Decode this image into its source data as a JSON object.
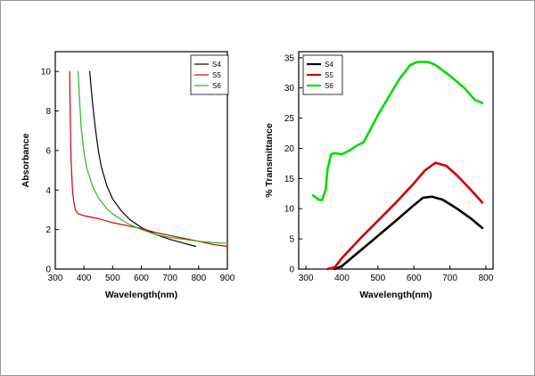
{
  "chart_data": [
    {
      "type": "line",
      "title": "",
      "xlabel": "Wavelength(nm)",
      "ylabel": "Absorbance",
      "xlim": [
        300,
        900
      ],
      "ylim": [
        0,
        11
      ],
      "xticks": [
        300,
        400,
        500,
        600,
        700,
        800,
        900
      ],
      "yticks": [
        0,
        2,
        4,
        6,
        8,
        10
      ],
      "legend": "top-right",
      "grid": false,
      "series": [
        {
          "name": "S4",
          "color": "#000000",
          "x": [
            420,
            430,
            440,
            450,
            460,
            480,
            500,
            530,
            560,
            600,
            650,
            700,
            750,
            790
          ],
          "y": [
            10,
            8.4,
            7.1,
            6.0,
            5.2,
            4.2,
            3.55,
            2.95,
            2.5,
            2.1,
            1.75,
            1.5,
            1.3,
            1.15
          ]
        },
        {
          "name": "S5",
          "color": "#cc0000",
          "x": [
            350,
            352,
            355,
            360,
            365,
            370,
            380,
            400,
            450,
            500,
            550,
            600,
            650,
            700,
            750,
            800,
            850,
            900
          ],
          "y": [
            10,
            8.0,
            5.5,
            4.0,
            3.35,
            3.0,
            2.8,
            2.7,
            2.55,
            2.35,
            2.2,
            2.05,
            1.85,
            1.7,
            1.55,
            1.4,
            1.25,
            1.15
          ]
        },
        {
          "name": "S6",
          "color": "#22bb22",
          "x": [
            380,
            385,
            390,
            400,
            410,
            430,
            450,
            480,
            500,
            530,
            560,
            600,
            650,
            700,
            750,
            800,
            850,
            900
          ],
          "y": [
            10,
            8.5,
            7.2,
            5.9,
            5.1,
            4.2,
            3.6,
            3.05,
            2.8,
            2.5,
            2.25,
            2.0,
            1.75,
            1.6,
            1.5,
            1.4,
            1.35,
            1.3
          ]
        }
      ]
    },
    {
      "type": "line",
      "title": "",
      "xlabel": "Wavelength(nm)",
      "ylabel": "% Transmittance",
      "xlim": [
        280,
        820
      ],
      "ylim": [
        0,
        36
      ],
      "xticks": [
        300,
        400,
        500,
        600,
        700,
        800
      ],
      "yticks": [
        0,
        5,
        10,
        15,
        20,
        25,
        30,
        35
      ],
      "legend": "top-left",
      "grid": false,
      "series": [
        {
          "name": "S4",
          "color": "#000000",
          "x": [
            380,
            400,
            450,
            500,
            550,
            600,
            625,
            650,
            680,
            720,
            760,
            790
          ],
          "y": [
            0,
            0.5,
            3.0,
            5.5,
            8.0,
            10.6,
            11.8,
            12.0,
            11.5,
            10.0,
            8.3,
            6.8
          ]
        },
        {
          "name": "S5",
          "color": "#cc0000",
          "x": [
            360,
            380,
            400,
            450,
            500,
            550,
            600,
            630,
            660,
            690,
            720,
            760,
            790
          ],
          "y": [
            0,
            0.3,
            1.8,
            5.0,
            8.0,
            11.0,
            14.2,
            16.3,
            17.6,
            17.1,
            15.5,
            13.0,
            11.0
          ]
        },
        {
          "name": "S6",
          "color": "#00dd00",
          "x": [
            320,
            335,
            345,
            355,
            360,
            370,
            380,
            400,
            420,
            440,
            460,
            480,
            500,
            530,
            560,
            590,
            610,
            640,
            660,
            700,
            740,
            770,
            790
          ],
          "y": [
            12.2,
            11.5,
            11.4,
            13.2,
            16.5,
            19.0,
            19.2,
            19.0,
            19.6,
            20.4,
            21.0,
            23.2,
            25.5,
            28.5,
            31.5,
            33.8,
            34.3,
            34.3,
            33.8,
            32.0,
            30.0,
            28.0,
            27.5
          ]
        }
      ]
    }
  ]
}
